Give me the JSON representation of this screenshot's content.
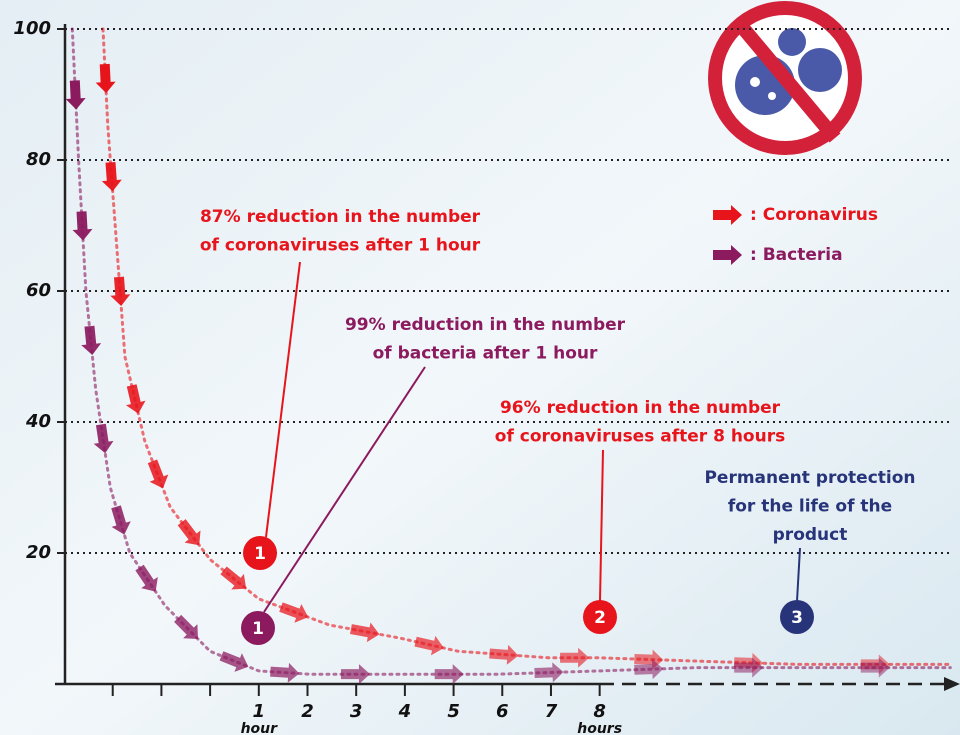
{
  "chart_data": {
    "type": "line",
    "xlim": [
      -2.98,
      15.4
    ],
    "ylim": [
      0,
      100
    ],
    "yticks": [
      20,
      40,
      60,
      80,
      100
    ],
    "xticks": [
      1,
      2,
      3,
      4,
      5,
      6,
      7,
      8
    ],
    "minor_xticks": [
      -2,
      -1,
      0
    ],
    "x_unit_labels": [
      {
        "value": 1,
        "label": "hour"
      },
      {
        "value": 8,
        "label": "hours"
      }
    ],
    "grid": true,
    "series": [
      {
        "name": ": Coronavirus",
        "color": "#e8141b",
        "x": [
          -2.2,
          -2.1,
          -1.95,
          -1.75,
          -1.34,
          -0.82,
          0,
          1,
          2.45,
          3.9,
          5.1,
          6.95,
          8,
          10,
          12.1,
          15.2
        ],
        "values": [
          100,
          85,
          70,
          50,
          37,
          27,
          19,
          13,
          9,
          7,
          5,
          4,
          4,
          3.5,
          3,
          3
        ]
      },
      {
        "name": ": Bacteria",
        "color": "#8b1a5f",
        "x": [
          -2.83,
          -2.7,
          -2.55,
          -2.35,
          -2.05,
          -1.65,
          -0.93,
          0,
          1,
          2.05,
          3.9,
          5.9,
          8,
          10,
          12.1,
          15.2
        ],
        "values": [
          100,
          80,
          60,
          45,
          30,
          20,
          12,
          5,
          2,
          1.5,
          1.5,
          1.5,
          2,
          2.5,
          2.5,
          2.5
        ]
      }
    ],
    "annotations": [
      {
        "lines": [
          "87% reduction in the number",
          "of coronaviruses after 1 hour"
        ],
        "number": "1",
        "color": "#e8141b"
      },
      {
        "lines": [
          "99% reduction in the number",
          "of bacteria after 1 hour"
        ],
        "number": "1",
        "color": "#8b1a5f"
      },
      {
        "lines": [
          "96% reduction in the number",
          "of coronaviruses after 8 hours"
        ],
        "number": "2",
        "color": "#e8141b"
      },
      {
        "lines": [
          "Permanent protection",
          "for the life of the",
          "product"
        ],
        "number": "3",
        "color": "#27347a"
      }
    ]
  }
}
